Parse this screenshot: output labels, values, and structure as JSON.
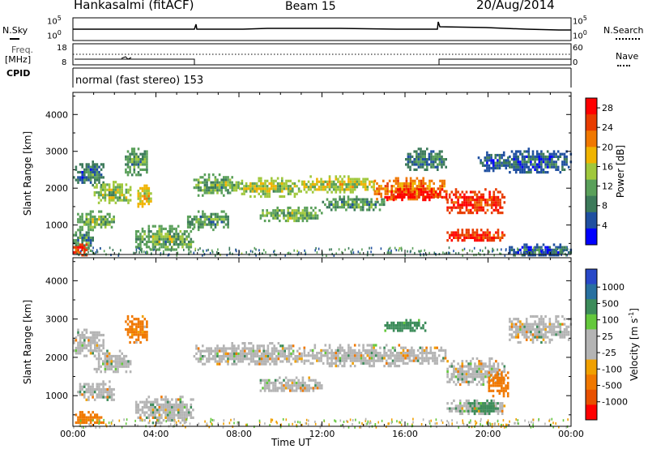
{
  "header": {
    "station": "Hankasalmi (fitACF)",
    "beam": "Beam 15",
    "date": "20/Aug/2014"
  },
  "top_panels": {
    "nsky_label": "N.Sky",
    "nsearch_label": "N.Search",
    "freq_label_1": "Freq.",
    "freq_label_2": "[MHz]",
    "nave_label": "Nave",
    "cpid_label": "CPID",
    "nsky_ticks": [
      "10^5",
      "10^0"
    ],
    "nsearch_ticks": [
      "10^5",
      "10^0"
    ],
    "freq_ticks": [
      "18",
      "8"
    ],
    "nave_ticks": [
      "60",
      "0"
    ],
    "cpid_text": "normal (fast stereo) 153"
  },
  "colors": {
    "power_scale": [
      "#0000ff",
      "#1f4fa0",
      "#3c7a5a",
      "#5aa05a",
      "#a0c83c",
      "#f0b400",
      "#f07800",
      "#e83c00",
      "#ff0000"
    ],
    "velocity_scale": [
      "#2848c8",
      "#2870a0",
      "#3c8c5a",
      "#64c83c",
      "#b4b4b4",
      "#b4b4b4",
      "#f0a000",
      "#f07800",
      "#e85000",
      "#ff0000"
    ]
  },
  "chart_data": [
    {
      "type": "heatmap",
      "title": "Power",
      "ylabel": "Slant Range [km]",
      "xlabel": "",
      "x_ticks": [
        "00:00",
        "04:00",
        "08:00",
        "12:00",
        "16:00",
        "20:00",
        "00:00"
      ],
      "y_ticks": [
        1000,
        2000,
        3000,
        4000
      ],
      "ylim": [
        200,
        4600
      ],
      "xlim_hours": [
        0,
        24
      ],
      "colorbar_label": "Power [dB]",
      "colorbar_ticks": [
        4,
        8,
        12,
        16,
        20,
        24,
        28
      ],
      "colorbar_range": [
        0,
        30
      ],
      "regions": [
        {
          "t0": 0.0,
          "t1": 1.5,
          "r0": 2050,
          "r1": 2750,
          "v": 8
        },
        {
          "t0": 1.0,
          "t1": 2.8,
          "r0": 1600,
          "r1": 2200,
          "v": 14
        },
        {
          "t0": 2.5,
          "t1": 3.6,
          "r0": 2350,
          "r1": 3100,
          "v": 10
        },
        {
          "t0": 3.0,
          "t1": 3.8,
          "r0": 1500,
          "r1": 2100,
          "v": 18
        },
        {
          "t0": 0.2,
          "t1": 2.0,
          "r0": 900,
          "r1": 1400,
          "v": 12
        },
        {
          "t0": 0.0,
          "t1": 1.0,
          "r0": 300,
          "r1": 900,
          "v": 10
        },
        {
          "t0": 0.0,
          "t1": 0.8,
          "r0": 200,
          "r1": 500,
          "v": 26
        },
        {
          "t0": 3.0,
          "t1": 5.8,
          "r0": 300,
          "r1": 1000,
          "v": 12
        },
        {
          "t0": 5.8,
          "t1": 8.0,
          "r0": 1800,
          "r1": 2400,
          "v": 12
        },
        {
          "t0": 5.5,
          "t1": 7.5,
          "r0": 900,
          "r1": 1400,
          "v": 10
        },
        {
          "t0": 8.0,
          "t1": 11.0,
          "r0": 1800,
          "r1": 2300,
          "v": 14
        },
        {
          "t0": 9.0,
          "t1": 12.0,
          "r0": 1100,
          "r1": 1500,
          "v": 12
        },
        {
          "t0": 11.0,
          "t1": 14.5,
          "r0": 1900,
          "r1": 2350,
          "v": 16
        },
        {
          "t0": 12.0,
          "t1": 15.0,
          "r0": 1400,
          "r1": 1800,
          "v": 10
        },
        {
          "t0": 14.5,
          "t1": 18.0,
          "r0": 1700,
          "r1": 2300,
          "v": 22
        },
        {
          "t0": 15.0,
          "t1": 18.0,
          "r0": 1700,
          "r1": 2000,
          "v": 28
        },
        {
          "t0": 16.0,
          "t1": 18.0,
          "r0": 2500,
          "r1": 3100,
          "v": 8
        },
        {
          "t0": 18.0,
          "t1": 20.8,
          "r0": 1300,
          "r1": 2000,
          "v": 26
        },
        {
          "t0": 18.0,
          "t1": 20.8,
          "r0": 550,
          "r1": 900,
          "v": 26
        },
        {
          "t0": 19.5,
          "t1": 21.0,
          "r0": 2500,
          "r1": 3000,
          "v": 6
        },
        {
          "t0": 21.0,
          "t1": 24.0,
          "r0": 2400,
          "r1": 3100,
          "v": 6
        },
        {
          "t0": 21.0,
          "t1": 24.0,
          "r0": 200,
          "r1": 500,
          "v": 6
        }
      ]
    },
    {
      "type": "heatmap",
      "title": "Velocity",
      "ylabel": "Slant Range [km]",
      "xlabel": "Time UT",
      "x_ticks": [
        "00:00",
        "04:00",
        "08:00",
        "12:00",
        "16:00",
        "20:00",
        "00:00"
      ],
      "y_ticks": [
        1000,
        2000,
        3000,
        4000
      ],
      "ylim": [
        200,
        4600
      ],
      "xlim_hours": [
        0,
        24
      ],
      "colorbar_label": "Velocity [m s^-1]",
      "colorbar_ticks": [
        "1000",
        "500",
        "100",
        "25",
        "-25",
        "-100",
        "-500",
        "-1000"
      ],
      "regions": [
        {
          "t0": 0.0,
          "t1": 1.5,
          "r0": 2050,
          "r1": 2750,
          "v": 0
        },
        {
          "t0": 1.0,
          "t1": 2.8,
          "r0": 1600,
          "r1": 2200,
          "v": 0
        },
        {
          "t0": 2.5,
          "t1": 3.6,
          "r0": 2400,
          "r1": 3100,
          "v": -150
        },
        {
          "t0": 0.2,
          "t1": 2.0,
          "r0": 900,
          "r1": 1400,
          "v": 0
        },
        {
          "t0": 0.0,
          "t1": 1.5,
          "r0": 250,
          "r1": 600,
          "v": -200
        },
        {
          "t0": 3.0,
          "t1": 5.8,
          "r0": 300,
          "r1": 1000,
          "v": 0
        },
        {
          "t0": 5.8,
          "t1": 11.0,
          "r0": 1800,
          "r1": 2400,
          "v": 0
        },
        {
          "t0": 9.0,
          "t1": 12.0,
          "r0": 1100,
          "r1": 1500,
          "v": 0
        },
        {
          "t0": 11.0,
          "t1": 18.0,
          "r0": 1800,
          "r1": 2350,
          "v": 0
        },
        {
          "t0": 18.0,
          "t1": 20.8,
          "r0": 1300,
          "r1": 2000,
          "v": 0
        },
        {
          "t0": 18.0,
          "t1": 20.8,
          "r0": 550,
          "r1": 900,
          "v": 0
        },
        {
          "t0": 19.0,
          "t1": 20.5,
          "r0": 550,
          "r1": 900,
          "v": 200
        },
        {
          "t0": 20.0,
          "t1": 21.0,
          "r0": 1000,
          "r1": 1700,
          "v": -300
        },
        {
          "t0": 21.0,
          "t1": 24.0,
          "r0": 2400,
          "r1": 3100,
          "v": 0
        },
        {
          "t0": 15.0,
          "t1": 17.0,
          "r0": 2700,
          "r1": 3000,
          "v": 200
        }
      ]
    }
  ]
}
